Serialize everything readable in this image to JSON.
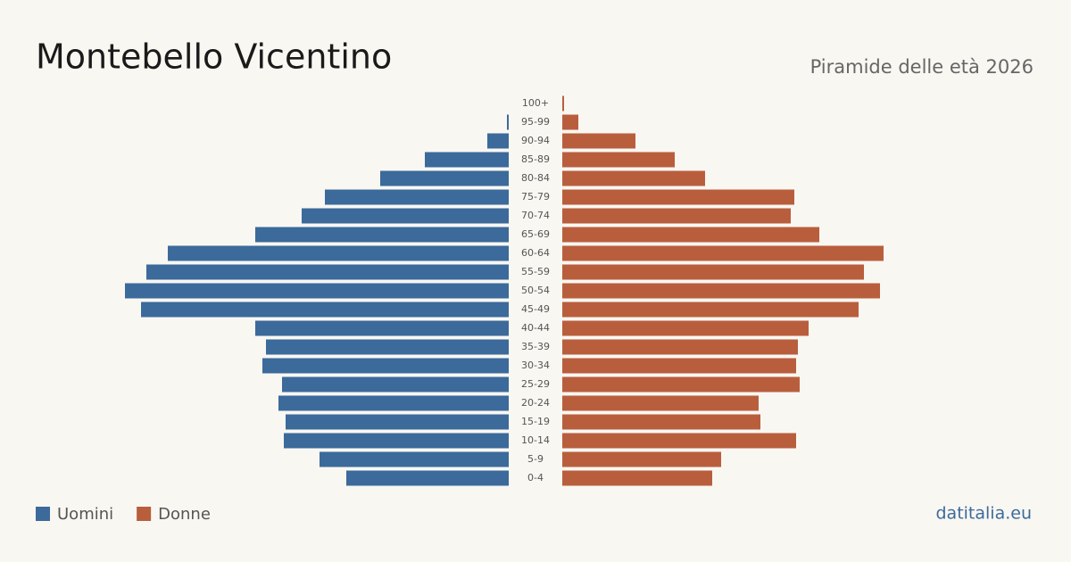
{
  "chart_data": {
    "type": "pyramid",
    "title": "Montebello Vicentino",
    "subtitle": "Piramide delle età 2026",
    "source": "datitalia.eu",
    "categories": [
      "100+",
      "95-99",
      "90-94",
      "85-89",
      "80-84",
      "75-79",
      "70-74",
      "65-69",
      "60-64",
      "55-59",
      "50-54",
      "45-49",
      "40-44",
      "35-39",
      "30-34",
      "25-29",
      "20-24",
      "15-19",
      "10-14",
      "5-9",
      "0-4"
    ],
    "series": [
      {
        "name": "Uomini",
        "color": "#3b6a9b",
        "values": [
          0,
          1,
          12,
          47,
          72,
          103,
          116,
          142,
          191,
          203,
          215,
          206,
          142,
          136,
          138,
          127,
          129,
          125,
          126,
          106,
          91
        ]
      },
      {
        "name": "Donne",
        "color": "#b95e3d",
        "values": [
          1,
          9,
          41,
          63,
          80,
          130,
          128,
          144,
          180,
          169,
          178,
          166,
          138,
          132,
          131,
          133,
          110,
          111,
          131,
          89,
          84
        ]
      }
    ]
  }
}
